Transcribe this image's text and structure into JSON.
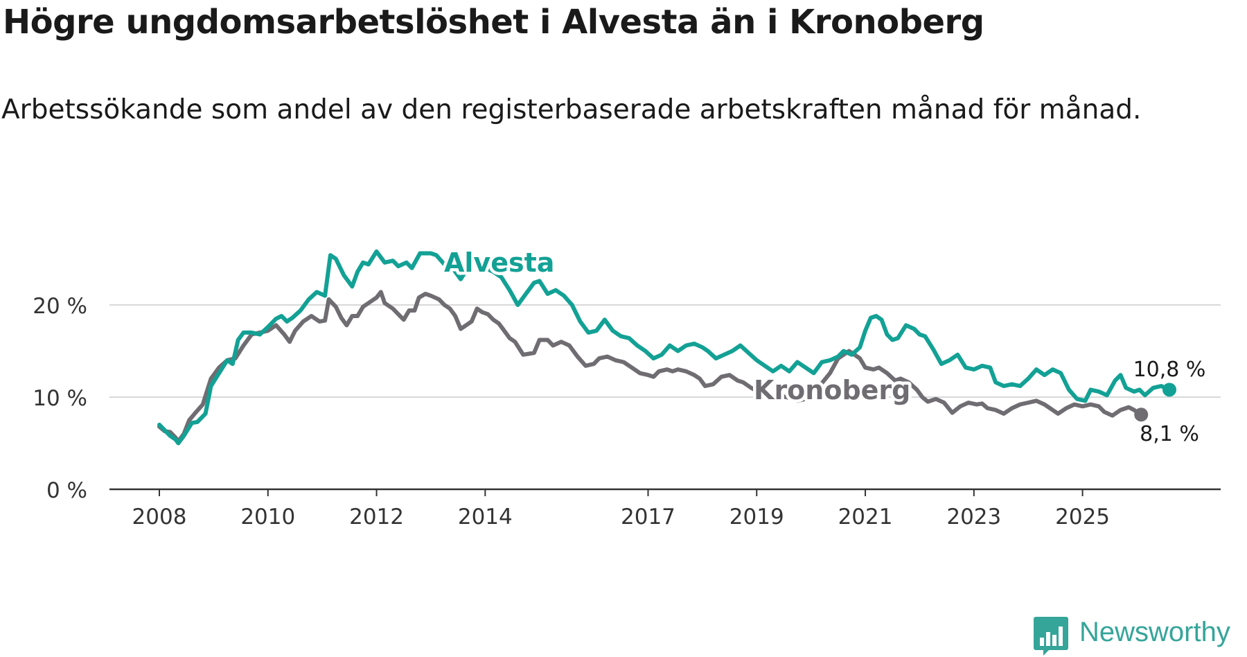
{
  "title": "Högre ungdomsarbetslöshet i Alvesta än i Kronoberg",
  "subtitle": "Arbetssökande som andel av den registerbaserade arbetskraften månad för månad.",
  "logo": {
    "text": "Newsworthy",
    "icon": "newsworthy-chat-bar-icon",
    "color": "#35a59a"
  },
  "chart_data": {
    "type": "line",
    "title": "Högre ungdomsarbetslöshet i Alvesta än i Kronoberg",
    "xlabel": "",
    "ylabel": "",
    "xlim": [
      2008.0,
      2026.75
    ],
    "ylim": [
      0,
      22
    ],
    "y_ticks": [
      {
        "value": 0,
        "label": "0 %"
      },
      {
        "value": 10,
        "label": "10 %"
      },
      {
        "value": 20,
        "label": "20 %"
      }
    ],
    "x_ticks": [
      {
        "value": 2008,
        "label": "2008"
      },
      {
        "value": 2010,
        "label": "2010"
      },
      {
        "value": 2012,
        "label": "2012"
      },
      {
        "value": 2014,
        "label": "2014"
      },
      {
        "value": 2017,
        "label": "2017"
      },
      {
        "value": 2019,
        "label": "2019"
      },
      {
        "value": 2021,
        "label": "2021"
      },
      {
        "value": 2023,
        "label": "2023"
      },
      {
        "value": 2025,
        "label": "2025"
      }
    ],
    "gridlines": true,
    "series": [
      {
        "name": "Kronoberg",
        "color": "#6f6d72",
        "label": "Kronoberg",
        "end_label": "8,1 %",
        "points": [
          [
            2008.0,
            6.8
          ],
          [
            2008.1,
            6.3
          ],
          [
            2008.2,
            6.2
          ],
          [
            2008.3,
            5.6
          ],
          [
            2008.35,
            5.2
          ],
          [
            2008.45,
            6.0
          ],
          [
            2008.55,
            7.5
          ],
          [
            2008.65,
            8.2
          ],
          [
            2008.8,
            9.2
          ],
          [
            2008.95,
            12.0
          ],
          [
            2009.1,
            13.2
          ],
          [
            2009.25,
            14.0
          ],
          [
            2009.4,
            14.2
          ],
          [
            2009.55,
            15.6
          ],
          [
            2009.7,
            16.8
          ],
          [
            2009.85,
            17.0
          ],
          [
            2010.0,
            17.2
          ],
          [
            2010.15,
            17.8
          ],
          [
            2010.3,
            16.8
          ],
          [
            2010.4,
            16.0
          ],
          [
            2010.5,
            17.2
          ],
          [
            2010.65,
            18.2
          ],
          [
            2010.8,
            18.8
          ],
          [
            2010.95,
            18.2
          ],
          [
            2011.05,
            18.3
          ],
          [
            2011.12,
            20.6
          ],
          [
            2011.25,
            19.8
          ],
          [
            2011.35,
            18.6
          ],
          [
            2011.45,
            17.8
          ],
          [
            2011.55,
            18.8
          ],
          [
            2011.65,
            18.8
          ],
          [
            2011.75,
            19.8
          ],
          [
            2011.9,
            20.4
          ],
          [
            2012.0,
            20.8
          ],
          [
            2012.08,
            21.4
          ],
          [
            2012.15,
            20.2
          ],
          [
            2012.3,
            19.6
          ],
          [
            2012.4,
            19.0
          ],
          [
            2012.5,
            18.4
          ],
          [
            2012.6,
            19.4
          ],
          [
            2012.7,
            19.4
          ],
          [
            2012.78,
            20.8
          ],
          [
            2012.9,
            21.2
          ],
          [
            2013.0,
            21.0
          ],
          [
            2013.15,
            20.6
          ],
          [
            2013.25,
            20.0
          ],
          [
            2013.35,
            19.6
          ],
          [
            2013.45,
            18.8
          ],
          [
            2013.55,
            17.4
          ],
          [
            2013.65,
            17.8
          ],
          [
            2013.75,
            18.2
          ],
          [
            2013.85,
            19.6
          ],
          [
            2013.95,
            19.2
          ],
          [
            2014.05,
            19.0
          ],
          [
            2014.15,
            18.4
          ],
          [
            2014.25,
            18.0
          ],
          [
            2014.35,
            17.2
          ],
          [
            2014.45,
            16.4
          ],
          [
            2014.55,
            16.0
          ],
          [
            2014.7,
            14.6
          ],
          [
            2014.9,
            14.8
          ],
          [
            2015.0,
            16.2
          ],
          [
            2015.15,
            16.2
          ],
          [
            2015.25,
            15.6
          ],
          [
            2015.4,
            16.0
          ],
          [
            2015.55,
            15.6
          ],
          [
            2015.7,
            14.4
          ],
          [
            2015.85,
            13.4
          ],
          [
            2016.0,
            13.6
          ],
          [
            2016.1,
            14.2
          ],
          [
            2016.25,
            14.4
          ],
          [
            2016.4,
            14.0
          ],
          [
            2016.55,
            13.8
          ],
          [
            2016.7,
            13.2
          ],
          [
            2016.85,
            12.6
          ],
          [
            2017.0,
            12.4
          ],
          [
            2017.1,
            12.2
          ],
          [
            2017.2,
            12.8
          ],
          [
            2017.35,
            13.0
          ],
          [
            2017.45,
            12.8
          ],
          [
            2017.55,
            13.0
          ],
          [
            2017.7,
            12.8
          ],
          [
            2017.85,
            12.4
          ],
          [
            2017.95,
            12.0
          ],
          [
            2018.05,
            11.2
          ],
          [
            2018.2,
            11.4
          ],
          [
            2018.35,
            12.2
          ],
          [
            2018.5,
            12.4
          ],
          [
            2018.65,
            11.8
          ],
          [
            2018.75,
            11.6
          ],
          [
            2018.9,
            11.0
          ],
          [
            2019.05,
            10.5
          ],
          [
            2019.2,
            10.3
          ],
          [
            2019.35,
            10.2
          ],
          [
            2019.55,
            10.0
          ],
          [
            2019.75,
            9.6
          ],
          [
            2019.9,
            9.8
          ],
          [
            2020.05,
            10.8
          ],
          [
            2020.2,
            11.5
          ],
          [
            2020.35,
            12.6
          ],
          [
            2020.5,
            14.2
          ],
          [
            2020.6,
            14.6
          ],
          [
            2020.7,
            15.0
          ],
          [
            2020.8,
            14.6
          ],
          [
            2020.9,
            14.2
          ],
          [
            2021.0,
            13.2
          ],
          [
            2021.15,
            13.0
          ],
          [
            2021.25,
            13.2
          ],
          [
            2021.4,
            12.6
          ],
          [
            2021.55,
            11.8
          ],
          [
            2021.65,
            12.0
          ],
          [
            2021.8,
            11.6
          ],
          [
            2021.95,
            10.8
          ],
          [
            2022.05,
            10.0
          ],
          [
            2022.15,
            9.5
          ],
          [
            2022.3,
            9.8
          ],
          [
            2022.45,
            9.4
          ],
          [
            2022.6,
            8.3
          ],
          [
            2022.75,
            9.0
          ],
          [
            2022.9,
            9.4
          ],
          [
            2023.05,
            9.2
          ],
          [
            2023.15,
            9.3
          ],
          [
            2023.25,
            8.8
          ],
          [
            2023.4,
            8.6
          ],
          [
            2023.55,
            8.2
          ],
          [
            2023.7,
            8.8
          ],
          [
            2023.85,
            9.2
          ],
          [
            2024.0,
            9.4
          ],
          [
            2024.15,
            9.6
          ],
          [
            2024.3,
            9.2
          ],
          [
            2024.45,
            8.6
          ],
          [
            2024.55,
            8.2
          ],
          [
            2024.7,
            8.8
          ],
          [
            2024.85,
            9.2
          ],
          [
            2025.0,
            9.0
          ],
          [
            2025.15,
            9.2
          ],
          [
            2025.3,
            9.0
          ],
          [
            2025.4,
            8.4
          ],
          [
            2025.55,
            8.0
          ],
          [
            2025.7,
            8.6
          ],
          [
            2025.85,
            8.9
          ],
          [
            2025.95,
            8.6
          ],
          [
            2026.08,
            8.1
          ]
        ]
      },
      {
        "name": "Alvesta",
        "color": "#13a195",
        "label": "Alvesta",
        "end_label": "10,8 %",
        "points": [
          [
            2008.0,
            7.0
          ],
          [
            2008.1,
            6.4
          ],
          [
            2008.2,
            5.8
          ],
          [
            2008.3,
            5.4
          ],
          [
            2008.35,
            5.0
          ],
          [
            2008.45,
            5.8
          ],
          [
            2008.6,
            7.2
          ],
          [
            2008.7,
            7.3
          ],
          [
            2008.85,
            8.2
          ],
          [
            2008.95,
            11.2
          ],
          [
            2009.1,
            12.6
          ],
          [
            2009.25,
            14.0
          ],
          [
            2009.35,
            13.6
          ],
          [
            2009.45,
            16.2
          ],
          [
            2009.55,
            17.0
          ],
          [
            2009.7,
            17.0
          ],
          [
            2009.85,
            16.8
          ],
          [
            2010.0,
            17.6
          ],
          [
            2010.15,
            18.5
          ],
          [
            2010.25,
            18.8
          ],
          [
            2010.35,
            18.2
          ],
          [
            2010.45,
            18.6
          ],
          [
            2010.6,
            19.4
          ],
          [
            2010.75,
            20.6
          ],
          [
            2010.9,
            21.4
          ],
          [
            2011.05,
            21.0
          ],
          [
            2011.15,
            25.4
          ],
          [
            2011.25,
            25.0
          ],
          [
            2011.4,
            23.2
          ],
          [
            2011.55,
            22.0
          ],
          [
            2011.65,
            23.6
          ],
          [
            2011.75,
            24.6
          ],
          [
            2011.85,
            24.4
          ],
          [
            2012.0,
            25.8
          ],
          [
            2012.15,
            24.6
          ],
          [
            2012.3,
            24.8
          ],
          [
            2012.4,
            24.2
          ],
          [
            2012.55,
            24.6
          ],
          [
            2012.65,
            24.0
          ],
          [
            2012.8,
            25.6
          ],
          [
            2012.9,
            25.6
          ],
          [
            2013.0,
            25.6
          ],
          [
            2013.1,
            25.4
          ],
          [
            2013.25,
            24.4
          ],
          [
            2013.4,
            24.0
          ],
          [
            2013.55,
            22.8
          ],
          [
            2013.7,
            24.2
          ],
          [
            2013.85,
            24.6
          ],
          [
            2014.0,
            24.0
          ],
          [
            2014.15,
            23.6
          ],
          [
            2014.3,
            23.0
          ],
          [
            2014.45,
            21.6
          ],
          [
            2014.6,
            20.0
          ],
          [
            2014.75,
            21.2
          ],
          [
            2014.9,
            22.4
          ],
          [
            2015.0,
            22.6
          ],
          [
            2015.15,
            21.2
          ],
          [
            2015.3,
            21.6
          ],
          [
            2015.45,
            21.0
          ],
          [
            2015.6,
            20.0
          ],
          [
            2015.75,
            18.2
          ],
          [
            2015.9,
            17.0
          ],
          [
            2016.05,
            17.2
          ],
          [
            2016.2,
            18.4
          ],
          [
            2016.35,
            17.2
          ],
          [
            2016.5,
            16.6
          ],
          [
            2016.65,
            16.4
          ],
          [
            2016.8,
            15.6
          ],
          [
            2016.95,
            15.0
          ],
          [
            2017.1,
            14.2
          ],
          [
            2017.25,
            14.6
          ],
          [
            2017.4,
            15.6
          ],
          [
            2017.55,
            15.0
          ],
          [
            2017.7,
            15.6
          ],
          [
            2017.85,
            15.8
          ],
          [
            2018.0,
            15.4
          ],
          [
            2018.1,
            15.0
          ],
          [
            2018.25,
            14.2
          ],
          [
            2018.4,
            14.6
          ],
          [
            2018.55,
            15.0
          ],
          [
            2018.7,
            15.6
          ],
          [
            2018.85,
            14.8
          ],
          [
            2019.0,
            14.0
          ],
          [
            2019.15,
            13.4
          ],
          [
            2019.3,
            12.8
          ],
          [
            2019.45,
            13.4
          ],
          [
            2019.6,
            12.8
          ],
          [
            2019.75,
            13.8
          ],
          [
            2019.9,
            13.2
          ],
          [
            2020.05,
            12.6
          ],
          [
            2020.2,
            13.8
          ],
          [
            2020.35,
            14.0
          ],
          [
            2020.5,
            14.4
          ],
          [
            2020.6,
            15.0
          ],
          [
            2020.75,
            14.6
          ],
          [
            2020.9,
            15.4
          ],
          [
            2021.0,
            17.2
          ],
          [
            2021.1,
            18.6
          ],
          [
            2021.2,
            18.8
          ],
          [
            2021.3,
            18.4
          ],
          [
            2021.4,
            16.8
          ],
          [
            2021.5,
            16.2
          ],
          [
            2021.6,
            16.4
          ],
          [
            2021.75,
            17.8
          ],
          [
            2021.9,
            17.4
          ],
          [
            2022.0,
            16.8
          ],
          [
            2022.1,
            16.6
          ],
          [
            2022.25,
            15.2
          ],
          [
            2022.4,
            13.6
          ],
          [
            2022.55,
            14.0
          ],
          [
            2022.7,
            14.6
          ],
          [
            2022.85,
            13.2
          ],
          [
            2023.0,
            13.0
          ],
          [
            2023.15,
            13.4
          ],
          [
            2023.3,
            13.2
          ],
          [
            2023.4,
            11.6
          ],
          [
            2023.55,
            11.2
          ],
          [
            2023.7,
            11.4
          ],
          [
            2023.85,
            11.2
          ],
          [
            2024.0,
            12.0
          ],
          [
            2024.15,
            13.0
          ],
          [
            2024.3,
            12.4
          ],
          [
            2024.45,
            13.0
          ],
          [
            2024.6,
            12.6
          ],
          [
            2024.75,
            10.8
          ],
          [
            2024.9,
            9.8
          ],
          [
            2025.05,
            9.6
          ],
          [
            2025.15,
            10.8
          ],
          [
            2025.3,
            10.6
          ],
          [
            2025.45,
            10.2
          ],
          [
            2025.6,
            11.8
          ],
          [
            2025.7,
            12.4
          ],
          [
            2025.8,
            11.0
          ],
          [
            2025.95,
            10.6
          ],
          [
            2026.05,
            10.8
          ],
          [
            2026.15,
            10.2
          ],
          [
            2026.3,
            11.0
          ],
          [
            2026.45,
            11.2
          ],
          [
            2026.6,
            10.8
          ]
        ]
      }
    ]
  }
}
